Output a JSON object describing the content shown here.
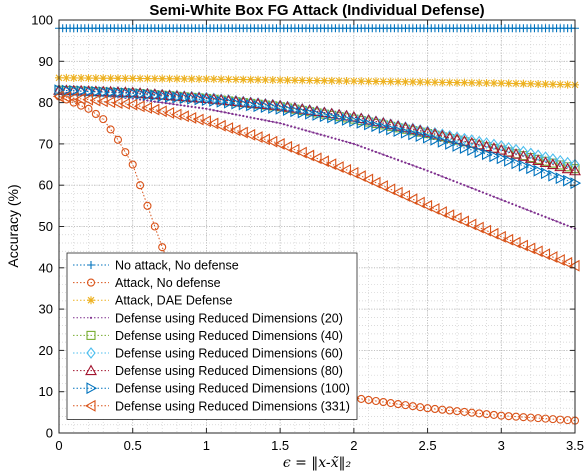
{
  "chart_data": {
    "type": "line",
    "title": "Semi-White Box FG Attack (Individual Defense)",
    "xlabel": "ϵ = ‖x-x̃‖₂",
    "ylabel": "Accuracy (%)",
    "xlim": [
      0,
      3.5
    ],
    "ylim": [
      0,
      100
    ],
    "xticks": [
      "0",
      "0.5",
      "1",
      "1.5",
      "2",
      "2.5",
      "3",
      "3.5"
    ],
    "yticks": [
      "0",
      "10",
      "20",
      "30",
      "40",
      "50",
      "60",
      "70",
      "80",
      "90",
      "100"
    ],
    "grid": "minor-dotted",
    "legend_position": "bottom-left",
    "x_step": 0.05,
    "series": [
      {
        "name": "No attack, No defense",
        "color": "#0072BD",
        "marker": "plus",
        "dense": true,
        "anchors": [
          [
            0,
            98
          ],
          [
            3.5,
            98
          ]
        ]
      },
      {
        "name": "Attack, No defense",
        "color": "#D95319",
        "marker": "circle",
        "anchors": [
          [
            0,
            81.5
          ],
          [
            0.1,
            80
          ],
          [
            0.2,
            78.5
          ],
          [
            0.3,
            76
          ],
          [
            0.4,
            71
          ],
          [
            0.5,
            65
          ],
          [
            0.6,
            55
          ],
          [
            0.7,
            45
          ],
          [
            0.8,
            36
          ],
          [
            0.9,
            29
          ],
          [
            1.0,
            23
          ],
          [
            1.1,
            19
          ],
          [
            1.2,
            16
          ],
          [
            1.3,
            13.5
          ],
          [
            1.5,
            11.5
          ],
          [
            1.7,
            10
          ],
          [
            2.0,
            8.5
          ],
          [
            2.5,
            6
          ],
          [
            3.0,
            4.2
          ],
          [
            3.5,
            3
          ]
        ]
      },
      {
        "name": "Attack, DAE Defense",
        "color": "#EDB120",
        "marker": "asterisk",
        "anchors": [
          [
            0,
            86
          ],
          [
            1.0,
            85.7
          ],
          [
            2.0,
            85.2
          ],
          [
            3.0,
            84.7
          ],
          [
            3.5,
            84.3
          ]
        ]
      },
      {
        "name": "Defense using Reduced Dimensions (20)",
        "color": "#7E2F8E",
        "marker": "dot",
        "dense": true,
        "anchors": [
          [
            0,
            82.5
          ],
          [
            0.5,
            81
          ],
          [
            1.0,
            78.5
          ],
          [
            1.5,
            75
          ],
          [
            2.0,
            70
          ],
          [
            2.5,
            63.5
          ],
          [
            3.0,
            56.5
          ],
          [
            3.5,
            49.5
          ]
        ]
      },
      {
        "name": "Defense using Reduced Dimensions (40)",
        "color": "#77AC30",
        "marker": "square",
        "anchors": [
          [
            0,
            83
          ],
          [
            0.5,
            82.3
          ],
          [
            1.0,
            81
          ],
          [
            1.5,
            79
          ],
          [
            2.0,
            76
          ],
          [
            2.5,
            72.5
          ],
          [
            3.0,
            68.5
          ],
          [
            3.5,
            64
          ]
        ]
      },
      {
        "name": "Defense using Reduced Dimensions (60)",
        "color": "#4DBEEE",
        "marker": "diamond",
        "anchors": [
          [
            0,
            83
          ],
          [
            0.5,
            82.4
          ],
          [
            1.0,
            81.2
          ],
          [
            1.5,
            79.3
          ],
          [
            2.0,
            76.5
          ],
          [
            2.5,
            73
          ],
          [
            3.0,
            69.5
          ],
          [
            3.5,
            65
          ]
        ]
      },
      {
        "name": "Defense using Reduced Dimensions (80)",
        "color": "#A2142F",
        "marker": "triangle-up",
        "anchors": [
          [
            0,
            83
          ],
          [
            0.5,
            82.4
          ],
          [
            1.0,
            81
          ],
          [
            1.5,
            79.2
          ],
          [
            2.0,
            76.5
          ],
          [
            2.5,
            72.8
          ],
          [
            3.0,
            68.5
          ],
          [
            3.5,
            63.5
          ]
        ]
      },
      {
        "name": "Defense using Reduced Dimensions (100)",
        "color": "#0072BD",
        "marker": "triangle-right",
        "anchors": [
          [
            0,
            83
          ],
          [
            0.5,
            82.2
          ],
          [
            1.0,
            80.6
          ],
          [
            1.5,
            78.5
          ],
          [
            2.0,
            75.5
          ],
          [
            2.5,
            71.5
          ],
          [
            3.0,
            66.5
          ],
          [
            3.5,
            60.5
          ]
        ]
      },
      {
        "name": "Defense using Reduced Dimensions (331)",
        "color": "#D95319",
        "marker": "triangle-left",
        "anchors": [
          [
            0,
            81.5
          ],
          [
            0.5,
            79.5
          ],
          [
            1.0,
            75.5
          ],
          [
            1.5,
            70
          ],
          [
            2.0,
            63
          ],
          [
            2.5,
            55
          ],
          [
            3.0,
            47.5
          ],
          [
            3.5,
            40.5
          ]
        ]
      }
    ]
  }
}
